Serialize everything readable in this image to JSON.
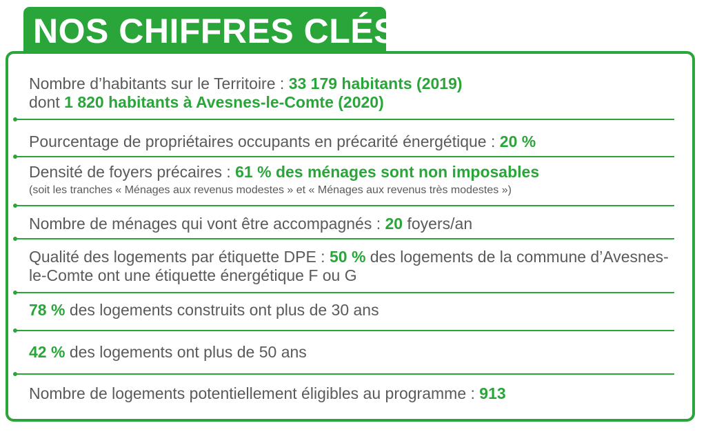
{
  "title": "NOS CHIFFRES CLÉS",
  "rows": [
    {
      "l1_prefix": "Nombre d’habitants sur le Territoire : ",
      "l1_value": "33 179 habitants (2019)",
      "l2_prefix": "dont ",
      "l2_value": "1 820 habitants à Avesnes-le-Comte (2020)"
    },
    {
      "prefix": "Pourcentage de propriétaires occupants en précarité énergétique : ",
      "value": "20 %"
    },
    {
      "prefix": "Densité de foyers précaires : ",
      "value": "61 % des ménages sont non imposables",
      "note": "(soit les tranches « Ménages aux revenus modestes » et « Ménages aux revenus très modestes »)"
    },
    {
      "prefix": "Nombre de ménages qui vont être accompagnés : ",
      "value": "20",
      "suffix": " foyers/an"
    },
    {
      "prefix": "Qualité des logements par étiquette DPE : ",
      "value": "50 %",
      "suffix": " des logements de la commune d’Avesnes-le-Comte ont une étiquette énergétique F ou G"
    },
    {
      "value": "78 %",
      "suffix": " des logements construits ont plus de 30 ans"
    },
    {
      "value": "42 %",
      "suffix": " des logements ont plus de 50 ans"
    },
    {
      "prefix": "Nombre de logements potentiellement éligibles au programme : ",
      "value": "913"
    }
  ],
  "colors": {
    "accent": "#2aa53a",
    "text": "#5a5a5a",
    "background": "#ffffff"
  }
}
